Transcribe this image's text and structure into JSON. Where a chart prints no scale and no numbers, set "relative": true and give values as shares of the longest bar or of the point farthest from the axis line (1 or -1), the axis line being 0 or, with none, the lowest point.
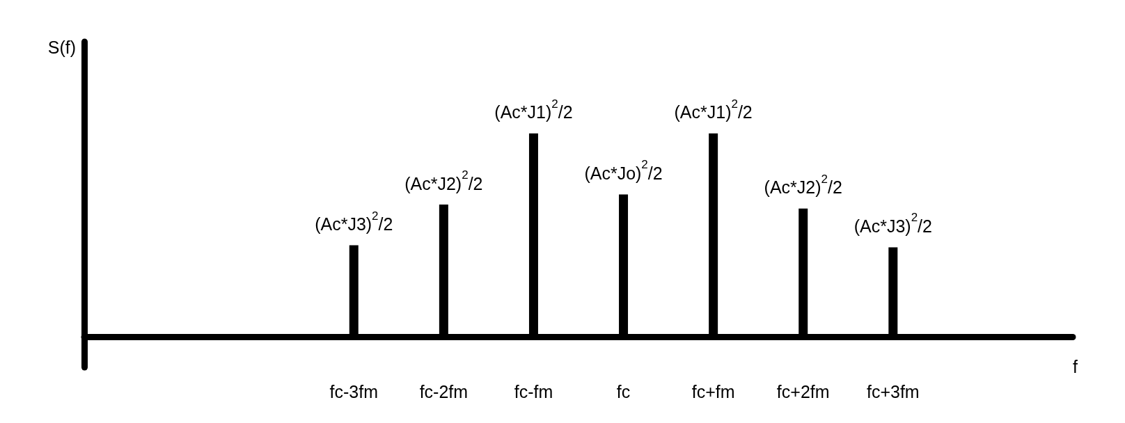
{
  "chart_data": {
    "type": "bar",
    "relative": true,
    "xlabel": "f",
    "ylabel": "S(f)",
    "categories": [
      null,
      null,
      null,
      "fc-3fm",
      "fc-2fm",
      "fc-fm",
      "fc",
      "fc+fm",
      "fc+2fm",
      "fc+3fm",
      null,
      null
    ],
    "values": [
      null,
      null,
      null,
      0.45,
      0.65,
      1,
      0.7,
      1,
      0.63,
      0.44,
      null,
      null
    ],
    "color": "#000000",
    "grid": false,
    "annotations": [
      {
        "text": "(Ac*J3)$^{2}$/2",
        "x": "fc-3fm",
        "y": 0.45
      },
      {
        "text": "(Ac*J2)$^{2}$/2",
        "x": "fc-2fm",
        "y": 0.65
      },
      {
        "text": "(Ac*J1)$^{2}$/2",
        "x": "fc-fm",
        "y": 1
      },
      {
        "text": "(Ac*Jo)$^{2}$/2",
        "x": "fc",
        "y": 0.7
      },
      {
        "text": "(Ac*J1)$^{2}$/2",
        "x": "fc+fm",
        "y": 1
      },
      {
        "text": "(Ac*J2)$^{2}$/2",
        "x": "fc+2fm",
        "y": 0.63
      },
      {
        "text": "(Ac*J3)$^{2}$/2",
        "x": "fc+3fm",
        "y": 0.44
      }
    ]
  }
}
